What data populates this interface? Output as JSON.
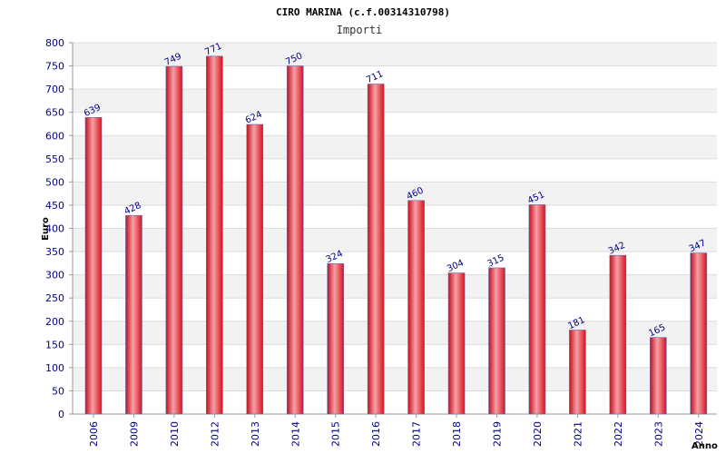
{
  "chart_data": {
    "type": "bar",
    "title": "CIRO MARINA (c.f.00314310798)",
    "subtitle": "Importi",
    "xlabel": "Anno",
    "ylabel": "Euro",
    "ylim": [
      0,
      800
    ],
    "ytick_step": 50,
    "grid": "horizontal",
    "categories": [
      "2006",
      "2009",
      "2010",
      "2012",
      "2013",
      "2014",
      "2015",
      "2016",
      "2017",
      "2018",
      "2019",
      "2020",
      "2021",
      "2022",
      "2023",
      "2024"
    ],
    "values": [
      639,
      428,
      749,
      771,
      624,
      750,
      324,
      711,
      460,
      304,
      315,
      451,
      181,
      342,
      165,
      347
    ],
    "bar_color": "#e8202a",
    "label_color": "#00008b"
  }
}
